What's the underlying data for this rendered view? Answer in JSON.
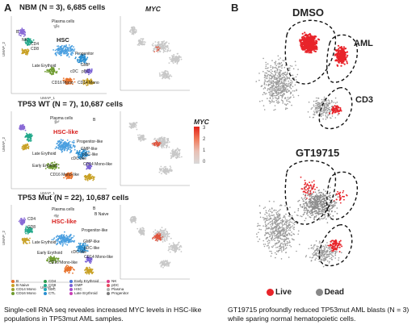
{
  "panel_a": {
    "letter": "A",
    "rows": [
      {
        "title": "NBM (N = 3), 6,685 cells",
        "myc_title": "MYC",
        "labels": [
          "Plasma cells",
          "HSC",
          "Progenitor",
          "GMP",
          "pDC",
          "cDC",
          "Late Erythoid",
          "CD16 Mono",
          "CD14 Mono",
          "B",
          "NK",
          "CD4",
          "CD8"
        ],
        "axis_x": "UMAP_1",
        "axis_y": "UMAP_2"
      },
      {
        "title": "TP53 WT (N = 7), 10,687 cells",
        "labels": [
          "Plasma cells",
          "HSC-like",
          "Progenitor-like",
          "GMP-like",
          "pDC-like",
          "cDC-like",
          "CD14 Mono-like",
          "Late Erythoid",
          "Early Erythoid",
          "CD16 Mono-like",
          "B"
        ],
        "axis_x": "UMAP_1",
        "axis_y": "UMAP_2"
      },
      {
        "title": "TP53 Mut (N = 22), 10,687 cells",
        "labels": [
          "Plasma cells",
          "HSC-like",
          "B Naive",
          "Progenitor-like",
          "GMP-like",
          "pDC-like",
          "cDC-like",
          "CD14 Mono-like",
          "Late Erythoid",
          "Early Erythoid",
          "CD16 Mono-like",
          "B",
          "CD4",
          "CD8"
        ],
        "axis_x": "UMAP_1",
        "axis_y": "UMAP_2"
      }
    ],
    "colorbar": {
      "title": "MYC",
      "ticks": [
        "3",
        "2",
        "1",
        "0"
      ]
    },
    "legend": [
      [
        "B",
        "B Naive",
        "CD14 Mono",
        "CD16 Mono"
      ],
      [
        "CD4",
        "CD8",
        "cDC",
        "CTL"
      ],
      [
        "Early Erythroid",
        "GMP",
        "HSC",
        "Late Erythroid"
      ],
      [
        "NK",
        "pDC",
        "Plasma",
        "Progenitor"
      ]
    ],
    "legend_colors": [
      [
        "#e8712a",
        "#c9a227",
        "#9aa22e",
        "#6e9b2f"
      ],
      [
        "#2e9e4f",
        "#22a88a",
        "#1fa7b8",
        "#2b8fd1"
      ],
      [
        "#4a77d8",
        "#7b62d6",
        "#a54dcf",
        "#c93fb4"
      ],
      [
        "#de3d8a",
        "#e44a5e",
        "#b0b0b0",
        "#7a7a7a"
      ]
    ],
    "caption": "Single-cell RNA seq reveales increased MYC levels in HSC-like populations in TP53mut AML samples."
  },
  "panel_b": {
    "letter": "B",
    "plot1_title": "DMSO",
    "plot1_labels": [
      "AML",
      "CD3"
    ],
    "plot2_title": "GT19715",
    "legend": [
      {
        "label": "Live",
        "color": "#e8242a"
      },
      {
        "label": "Dead",
        "color": "#888888"
      }
    ],
    "caption": "GT19715 profoundly reduced TP53mut AML blasts (N = 3) while sparing normal hematopoietic cells."
  }
}
